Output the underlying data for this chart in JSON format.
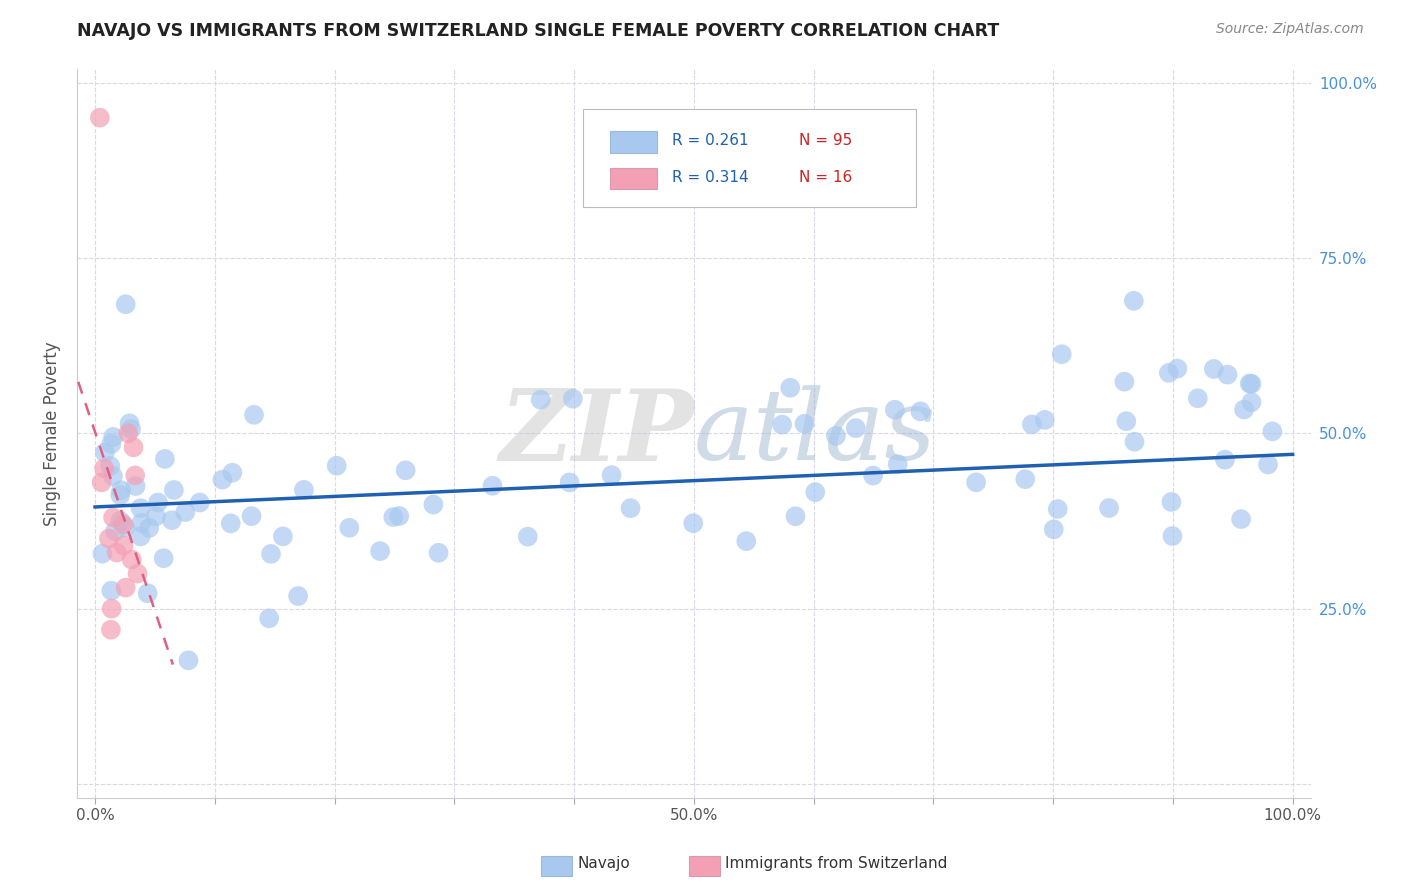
{
  "title": "NAVAJO VS IMMIGRANTS FROM SWITZERLAND SINGLE FEMALE POVERTY CORRELATION CHART",
  "source": "Source: ZipAtlas.com",
  "ylabel": "Single Female Poverty",
  "navajo_R": "0.261",
  "navajo_N": "95",
  "swiss_R": "0.314",
  "swiss_N": "16",
  "navajo_color": "#a8c8f0",
  "swiss_color": "#f4a0b4",
  "navajo_trend_color": "#2060b0",
  "swiss_trend_color": "#e06080",
  "watermark_text": "ZIPatlas",
  "background_color": "#ffffff",
  "grid_color": "#d8d8e8",
  "right_tick_color": "#4a90d9",
  "title_color": "#222222",
  "source_color": "#888888",
  "ylabel_color": "#555555"
}
